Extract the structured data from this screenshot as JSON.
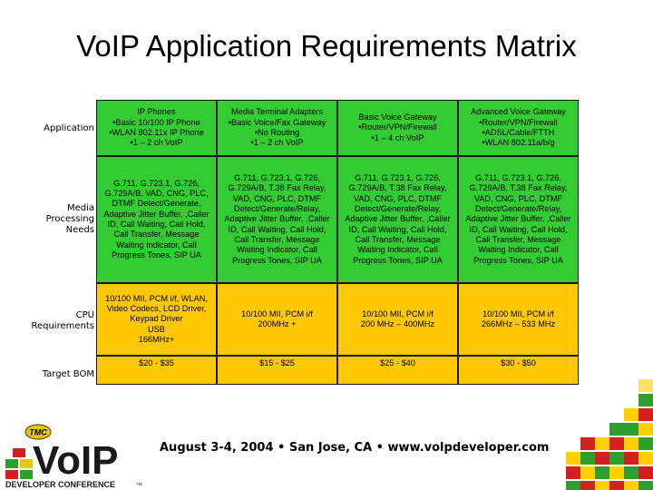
{
  "title": "VoIP Application Requirements Matrix",
  "row_labels": [
    "Application",
    "Media\nProcessing\nNeeds",
    "CPU\nRequirements",
    "Target BOM"
  ],
  "columns": [
    {
      "application": "IP Phones\n•Basic 10/100 IP Phone\n•WLAN 802.11x IP Phone\n•1 – 2 ch VoIP",
      "media": "G.711, G.723.1, G.726, G.729A/B, VAD, CNG, PLC, DTMF Detect/Generate, Adaptive Jitter Buffer, ,Caller ID, Call Waiting, Call Hold, Call Transfer, Message Waiting Indicator, Call Progress Tones, SIP UA",
      "cpu": "10/100 MII, PCM i/f, WLAN, Video Codecs, LCD Driver, Keypad Driver\nUSB\n166MHz+",
      "bom": "$20 - $35"
    },
    {
      "application": "Media Terminal Adapters\n•Basic Voice/Fax Gateway\n•No Routing\n•1 – 2 ch VoIP",
      "media": "G.711, G.723.1, G.726, G.729A/B, T.38 Fax Relay, VAD, CNG, PLC, DTMF Detect/Generate/Relay, Adaptive Jitter Buffer, ,Caller ID, Call Waiting, Call Hold, Call Transfer, Message Waiting Indicator, Call Progress Tones, SIP UA",
      "cpu": "10/100 MII, PCM i/f\n200MHz +",
      "bom": "$15 - $25"
    },
    {
      "application": "Basic Voice Gateway\n•Router/VPN/Firewall\n•1 – 4 ch VoIP",
      "media": "G.711, G.723.1, G.726, G.729A/B, T.38 Fax Relay, VAD, CNG, PLC, DTMF Detect/Generate/Relay, Adaptive Jitter Buffer, ,Caller ID, Call Waiting, Call Hold, Call Transfer, Message Waiting Indicator, Call Progress Tones, SIP UA",
      "cpu": "10/100 MII, PCM i/f\n200 MHz – 400MHz",
      "bom": "$25 - $40"
    },
    {
      "application": "Advanced Voice Gateway\n•Router/VPN/Firewall\n•ADSL/Cable/FTTH\n•WLAN 802.11a/b/g",
      "media": "G.711, G.723.1, G.726, G.729A/B, T.38 Fax Relay, VAD, CNG, PLC, DTMF Detect/Generate/Relay, Adaptive Jitter Buffer, ,Caller ID, Call Waiting, Call Hold, Call Transfer, Message Waiting Indicator, Call Progress Tones, SIP UA",
      "cpu": "10/100 MII, PCM i/f\n266MHz – 533 MHz",
      "bom": "$30 - $50"
    }
  ],
  "logo": {
    "badge": "TMC",
    "word": "VoIP",
    "tagline": "DEVELOPER CONFERENCE",
    "tm": "™"
  },
  "footer": "August 3-4, 2004 • San Jose, CA • www.volpdeveloper.com",
  "colors": {
    "green": "#33cc33",
    "yellow": "#ffc800"
  }
}
